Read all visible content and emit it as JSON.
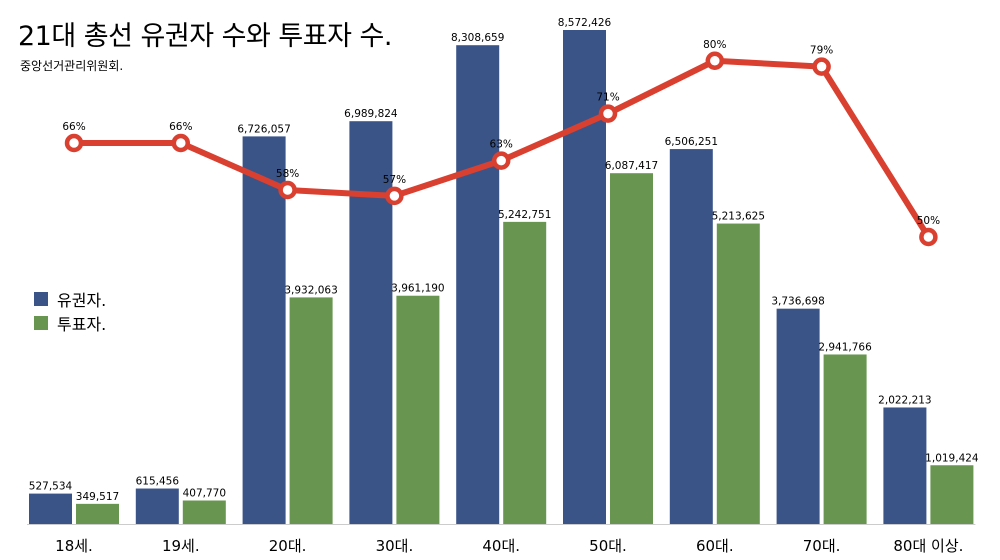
{
  "chart_data": {
    "type": "bar",
    "title": "21대 총선 유권자 수와 투표자 수.",
    "subtitle": "중앙선거관리위원회.",
    "categories": [
      "18세.",
      "19세.",
      "20대.",
      "30대.",
      "40대.",
      "50대.",
      "60대.",
      "70대.",
      "80대 이상."
    ],
    "series": [
      {
        "name": "유권자.",
        "color": "#3a5488",
        "values": [
          527534,
          615456,
          6726057,
          6989824,
          8308659,
          8572426,
          6506251,
          3736698,
          2022213
        ],
        "labels": [
          "527,534",
          "615,456",
          "6,726,057",
          "6,989,824",
          "8,308,659",
          "8,572,426",
          "6,506,251",
          "3,736,698",
          "2,022,213"
        ]
      },
      {
        "name": "투표자.",
        "color": "#68954f",
        "values": [
          349517,
          407770,
          3932063,
          3961190,
          5242751,
          6087417,
          5213625,
          2941766,
          1019424
        ],
        "labels": [
          "349,517",
          "407,770",
          "3,932,063",
          "3,961,190",
          "5,242,751",
          "6,087,417",
          "5,213,625",
          "2,941,766",
          "1,019,424"
        ]
      }
    ],
    "turnout": {
      "type": "line",
      "color": "#d94030",
      "values": [
        66,
        66,
        58,
        57,
        63,
        71,
        80,
        79,
        50
      ],
      "labels": [
        "66%",
        "66%",
        "58%",
        "57%",
        "63%",
        "71%",
        "80%",
        "79%",
        "50%"
      ]
    },
    "ylim": [
      0,
      8572426
    ],
    "legend_position": "left-middle",
    "grid": false
  }
}
